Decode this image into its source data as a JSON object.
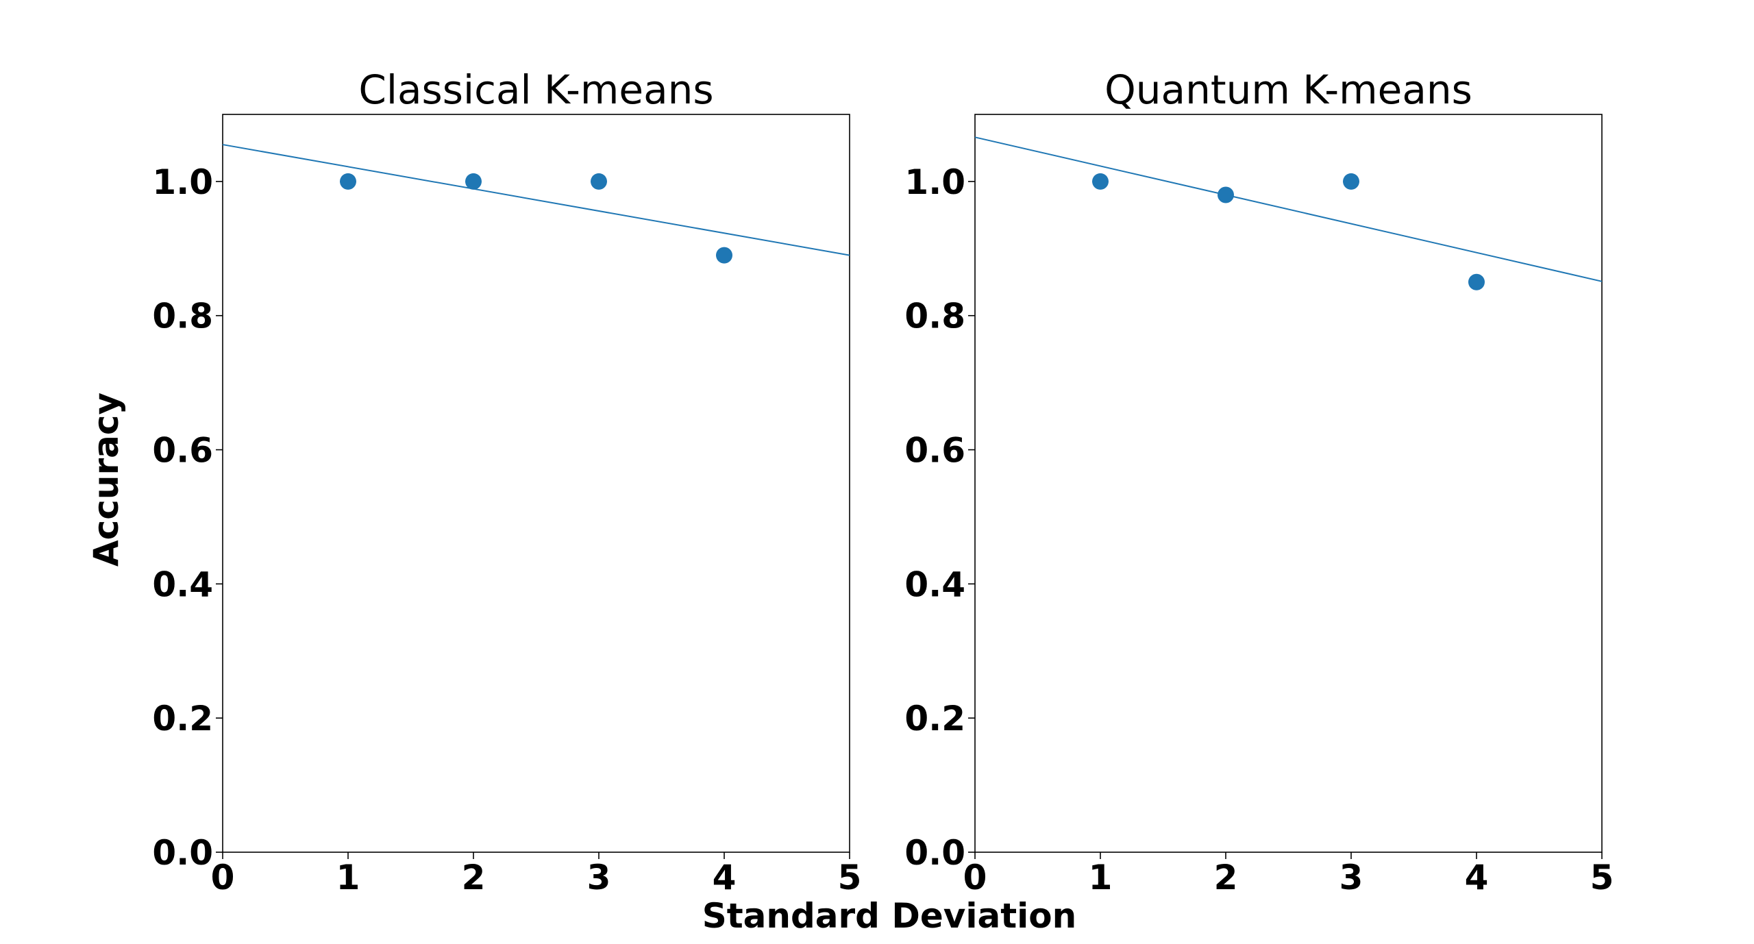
{
  "figure": {
    "ylabel": "Accuracy",
    "xlabel": "Standard Deviation"
  },
  "chart_data": [
    {
      "type": "scatter",
      "title": "Classical K-means",
      "xlim": [
        0,
        5
      ],
      "ylim": [
        0,
        1.1
      ],
      "xticks": [
        "0",
        "1",
        "2",
        "3",
        "4",
        "5"
      ],
      "yticks": [
        "0.0",
        "0.2",
        "0.4",
        "0.6",
        "0.8",
        "1.0"
      ],
      "grid": false,
      "color": "#1f77b4",
      "points": [
        {
          "x": 1,
          "y": 1.0
        },
        {
          "x": 2,
          "y": 1.0
        },
        {
          "x": 3,
          "y": 1.0
        },
        {
          "x": 4,
          "y": 0.89
        }
      ],
      "trend_line": {
        "intercept": 1.055,
        "slope": -0.033
      }
    },
    {
      "type": "scatter",
      "title": "Quantum K-means",
      "xlim": [
        0,
        5
      ],
      "ylim": [
        0,
        1.1
      ],
      "xticks": [
        "0",
        "1",
        "2",
        "3",
        "4",
        "5"
      ],
      "yticks": [
        "0.0",
        "0.2",
        "0.4",
        "0.6",
        "0.8",
        "1.0"
      ],
      "grid": false,
      "color": "#1f77b4",
      "points": [
        {
          "x": 1,
          "y": 1.0
        },
        {
          "x": 2,
          "y": 0.98
        },
        {
          "x": 3,
          "y": 1.0
        },
        {
          "x": 4,
          "y": 0.85
        }
      ],
      "trend_line": {
        "intercept": 1.066,
        "slope": -0.043
      }
    }
  ]
}
